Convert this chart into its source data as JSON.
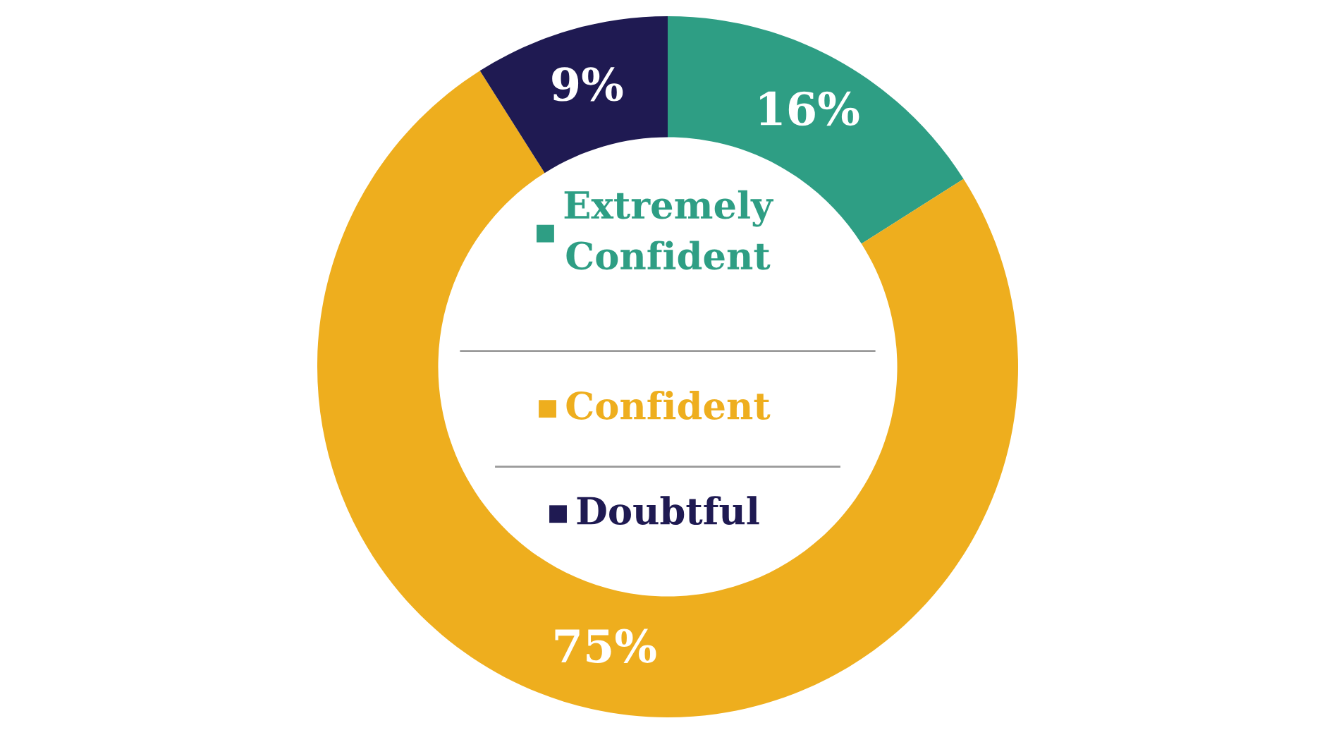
{
  "chart_data": {
    "type": "donut",
    "categories": [
      "Extremely Confident",
      "Confident",
      "Doubtful"
    ],
    "values": [
      16,
      75,
      9
    ],
    "colors": [
      "#2e9e84",
      "#eeae1e",
      "#1f1a52"
    ],
    "value_labels": [
      "16%",
      "75%",
      "9%"
    ],
    "legend": "center"
  }
}
